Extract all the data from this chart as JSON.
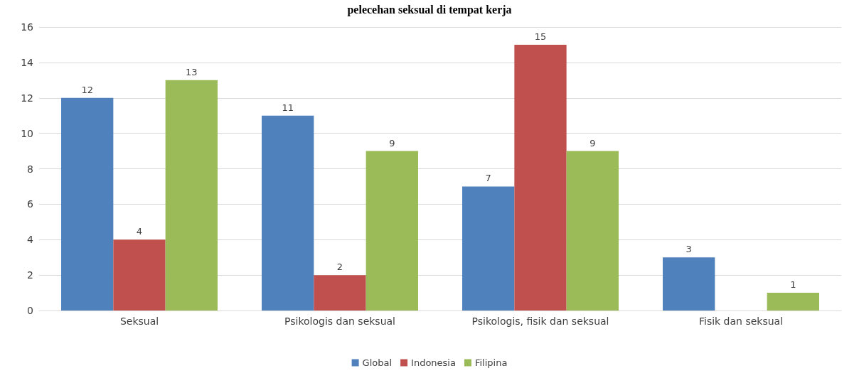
{
  "chart_data": {
    "type": "bar",
    "title": "pelecehan seksual di tempat kerja",
    "categories": [
      "Seksual",
      "Psikologis dan seksual",
      "Psikologis, fisik dan seksual",
      "Fisik dan seksual"
    ],
    "series": [
      {
        "name": "Global",
        "color": "#4f81bd",
        "values": [
          12,
          11,
          7,
          3
        ]
      },
      {
        "name": "Indonesia",
        "color": "#c0504d",
        "values": [
          4,
          2,
          15,
          null
        ]
      },
      {
        "name": "Filipina",
        "color": "#9bbb59",
        "values": [
          13,
          9,
          9,
          1
        ]
      }
    ],
    "ylim": [
      0,
      16
    ],
    "yticks": [
      0,
      2,
      4,
      6,
      8,
      10,
      12,
      14,
      16
    ],
    "grid": "y",
    "legend": "bottom",
    "data_labels": true
  }
}
